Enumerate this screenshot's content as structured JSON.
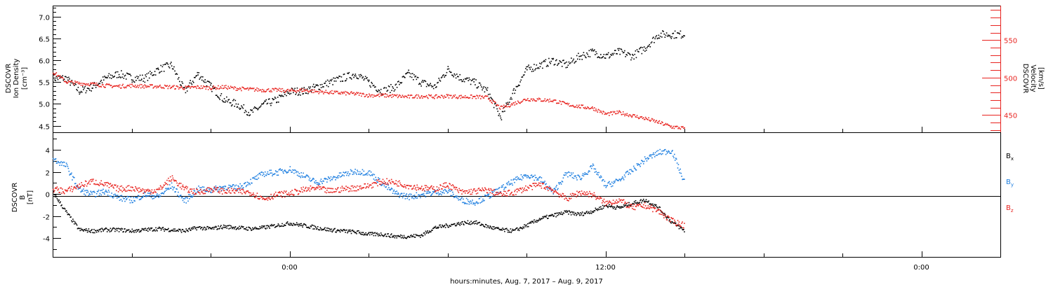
{
  "xlabel": "hours:minutes, Aug.  7, 2017 – Aug.  9, 2017",
  "x_ticks": [
    "0:00",
    "12:00",
    "0:00"
  ],
  "colors": {
    "black": "#000000",
    "red": "#e8231f",
    "blue": "#1f7fe0"
  },
  "chart_data": [
    {
      "type": "scatter",
      "title": "",
      "x_unit": "hours from 2017-08-08 00:00",
      "xlim": [
        -9,
        27
      ],
      "ylabel_lines": [
        "DSCOVR",
        "Ion Density"
      ],
      "yunit": "[cm⁻³]",
      "ylim": [
        4.35,
        7.25
      ],
      "yticks": [
        "4.5",
        "5.0",
        "5.5",
        "6.0",
        "6.5",
        "7.0"
      ],
      "y2label_lines": [
        "DSCOVR",
        "Velocity"
      ],
      "y2unit": "[km/s]",
      "y2lim": [
        427,
        596
      ],
      "y2ticks": [
        "450",
        "500",
        "550"
      ],
      "series": [
        {
          "name": "",
          "axis": "left",
          "color": "black",
          "x": [
            -9,
            -8.5,
            -8,
            -7.5,
            -7,
            -6.5,
            -6,
            -5.5,
            -5,
            -4.5,
            -4,
            -3.5,
            -3,
            -2.5,
            -2,
            -1.5,
            -1,
            -0.5,
            0,
            0.5,
            1,
            1.5,
            2,
            2.5,
            3,
            3.5,
            4,
            4.5,
            5,
            5.5,
            6,
            6.5,
            7,
            7.5,
            8,
            8.5,
            9,
            9.5,
            10,
            10.5,
            11,
            11.5,
            12,
            12.5,
            13,
            13.5,
            14,
            14.5,
            15
          ],
          "y": [
            5.6,
            5.6,
            5.3,
            5.4,
            5.6,
            5.7,
            5.6,
            5.6,
            5.8,
            5.9,
            5.3,
            5.7,
            5.4,
            5.1,
            5.0,
            4.8,
            5.0,
            5.1,
            5.3,
            5.3,
            5.4,
            5.5,
            5.6,
            5.7,
            5.5,
            5.3,
            5.4,
            5.7,
            5.5,
            5.4,
            5.8,
            5.6,
            5.5,
            5.3,
            4.7,
            5.3,
            5.8,
            5.9,
            6.0,
            5.9,
            6.1,
            6.2,
            6.1,
            6.2,
            6.1,
            6.3,
            6.6,
            6.6,
            6.6
          ]
        },
        {
          "name": "",
          "axis": "right",
          "color": "red",
          "x": [
            -9,
            -8.5,
            -8,
            -7.5,
            -7,
            -6.5,
            -6,
            -5.5,
            -5,
            -4.5,
            -4,
            -3.5,
            -3,
            -2.5,
            -2,
            -1.5,
            -1,
            -0.5,
            0,
            0.5,
            1,
            1.5,
            2,
            2.5,
            3,
            3.5,
            4,
            4.5,
            5,
            5.5,
            6,
            6.5,
            7,
            7.5,
            8,
            8.5,
            9,
            9.5,
            10,
            10.5,
            11,
            11.5,
            12,
            12.5,
            13,
            13.5,
            14,
            14.5,
            15
          ],
          "y": [
            508,
            495,
            493,
            492,
            490,
            489,
            490,
            489,
            489,
            488,
            487,
            488,
            487,
            488,
            486,
            485,
            484,
            484,
            483,
            484,
            482,
            481,
            480,
            479,
            477,
            477,
            476,
            475,
            476,
            475,
            476,
            475,
            475,
            474,
            460,
            466,
            472,
            471,
            470,
            465,
            462,
            460,
            452,
            454,
            450,
            446,
            441,
            435,
            433
          ]
        }
      ]
    },
    {
      "type": "scatter",
      "title": "",
      "x_unit": "hours from 2017-08-08 00:00",
      "xlim": [
        -9,
        27
      ],
      "ylabel_lines": [
        "DSCOVR",
        "B"
      ],
      "yunit": "[nT]",
      "ylim": [
        -5.7,
        5.6
      ],
      "yticks": [
        "-4",
        "-2",
        "0",
        "2",
        "4"
      ],
      "zero_line": true,
      "series": [
        {
          "name": "B",
          "sub": "x",
          "color": "black",
          "x": [
            -9,
            -8.5,
            -8,
            -7.5,
            -7,
            -6.5,
            -6,
            -5.5,
            -5,
            -4.5,
            -4,
            -3.5,
            -3,
            -2.5,
            -2,
            -1.5,
            -1,
            -0.5,
            0,
            0.5,
            1,
            1.5,
            2,
            2.5,
            3,
            3.5,
            4,
            4.5,
            5,
            5.5,
            6,
            6.5,
            7,
            7.5,
            8,
            8.5,
            9,
            9.5,
            10,
            10.5,
            11,
            11.5,
            12,
            12.5,
            13,
            13.5,
            14,
            14.5,
            15
          ],
          "y": [
            0.2,
            -1.6,
            -3.2,
            -3.3,
            -3.2,
            -3.2,
            -3.3,
            -3.2,
            -3.1,
            -3.2,
            -3.3,
            -3.0,
            -3.1,
            -2.9,
            -3.0,
            -3.1,
            -3.0,
            -2.8,
            -2.6,
            -2.8,
            -3.0,
            -3.2,
            -3.3,
            -3.4,
            -3.6,
            -3.6,
            -3.8,
            -3.8,
            -3.7,
            -3.0,
            -2.8,
            -2.6,
            -2.5,
            -2.9,
            -3.2,
            -3.3,
            -2.8,
            -2.2,
            -1.9,
            -1.6,
            -1.8,
            -1.5,
            -1.0,
            -1.2,
            -0.8,
            -0.5,
            -1.2,
            -2.5,
            -3.3
          ]
        },
        {
          "name": "B",
          "sub": "y",
          "color": "blue",
          "x": [
            -9,
            -8.5,
            -8,
            -7.5,
            -7,
            -6.5,
            -6,
            -5.5,
            -5,
            -4.5,
            -4,
            -3.5,
            -3,
            -2.5,
            -2,
            -1.5,
            -1,
            -0.5,
            0,
            0.5,
            1,
            1.5,
            2,
            2.5,
            3,
            3.5,
            4,
            4.5,
            5,
            5.5,
            6,
            6.5,
            7,
            7.5,
            8,
            8.5,
            9,
            9.5,
            10,
            10.5,
            11,
            11.5,
            12,
            12.5,
            13,
            13.5,
            14,
            14.5,
            15
          ],
          "y": [
            3.2,
            2.6,
            0.4,
            0.0,
            0.3,
            -0.3,
            -0.5,
            0.0,
            -0.2,
            0.8,
            -0.6,
            0.5,
            0.4,
            0.7,
            0.6,
            1.2,
            1.9,
            2.0,
            2.3,
            1.7,
            1.1,
            1.4,
            1.8,
            2.1,
            2.0,
            1.0,
            0.1,
            -0.2,
            0.0,
            0.2,
            0.3,
            -0.5,
            -0.7,
            -0.2,
            0.5,
            1.2,
            1.8,
            1.4,
            0.2,
            1.9,
            1.5,
            2.5,
            0.8,
            1.3,
            2.2,
            3.2,
            3.8,
            4.0,
            1.0
          ]
        },
        {
          "name": "B",
          "sub": "z",
          "color": "red",
          "x": [
            -9,
            -8.5,
            -8,
            -7.5,
            -7,
            -6.5,
            -6,
            -5.5,
            -5,
            -4.5,
            -4,
            -3.5,
            -3,
            -2.5,
            -2,
            -1.5,
            -1,
            -0.5,
            0,
            0.5,
            1,
            1.5,
            2,
            2.5,
            3,
            3.5,
            4,
            4.5,
            5,
            5.5,
            6,
            6.5,
            7,
            7.5,
            8,
            8.5,
            9,
            9.5,
            10,
            10.5,
            11,
            11.5,
            12,
            12.5,
            13,
            13.5,
            14,
            14.5,
            15
          ],
          "y": [
            0.5,
            0.3,
            0.8,
            1.2,
            0.9,
            0.5,
            0.6,
            0.3,
            0.4,
            1.5,
            0.5,
            0.2,
            0.5,
            0.3,
            0.3,
            0.2,
            -0.4,
            0.0,
            0.1,
            0.4,
            0.6,
            0.3,
            0.5,
            0.6,
            0.8,
            1.2,
            1.1,
            0.8,
            0.6,
            0.5,
            0.9,
            0.2,
            0.3,
            0.4,
            0.0,
            0.2,
            0.6,
            0.9,
            0.4,
            -0.4,
            0.2,
            0.0,
            -0.8,
            -0.5,
            -1.2,
            -1.0,
            -1.5,
            -2.4,
            -2.8
          ]
        }
      ]
    }
  ]
}
